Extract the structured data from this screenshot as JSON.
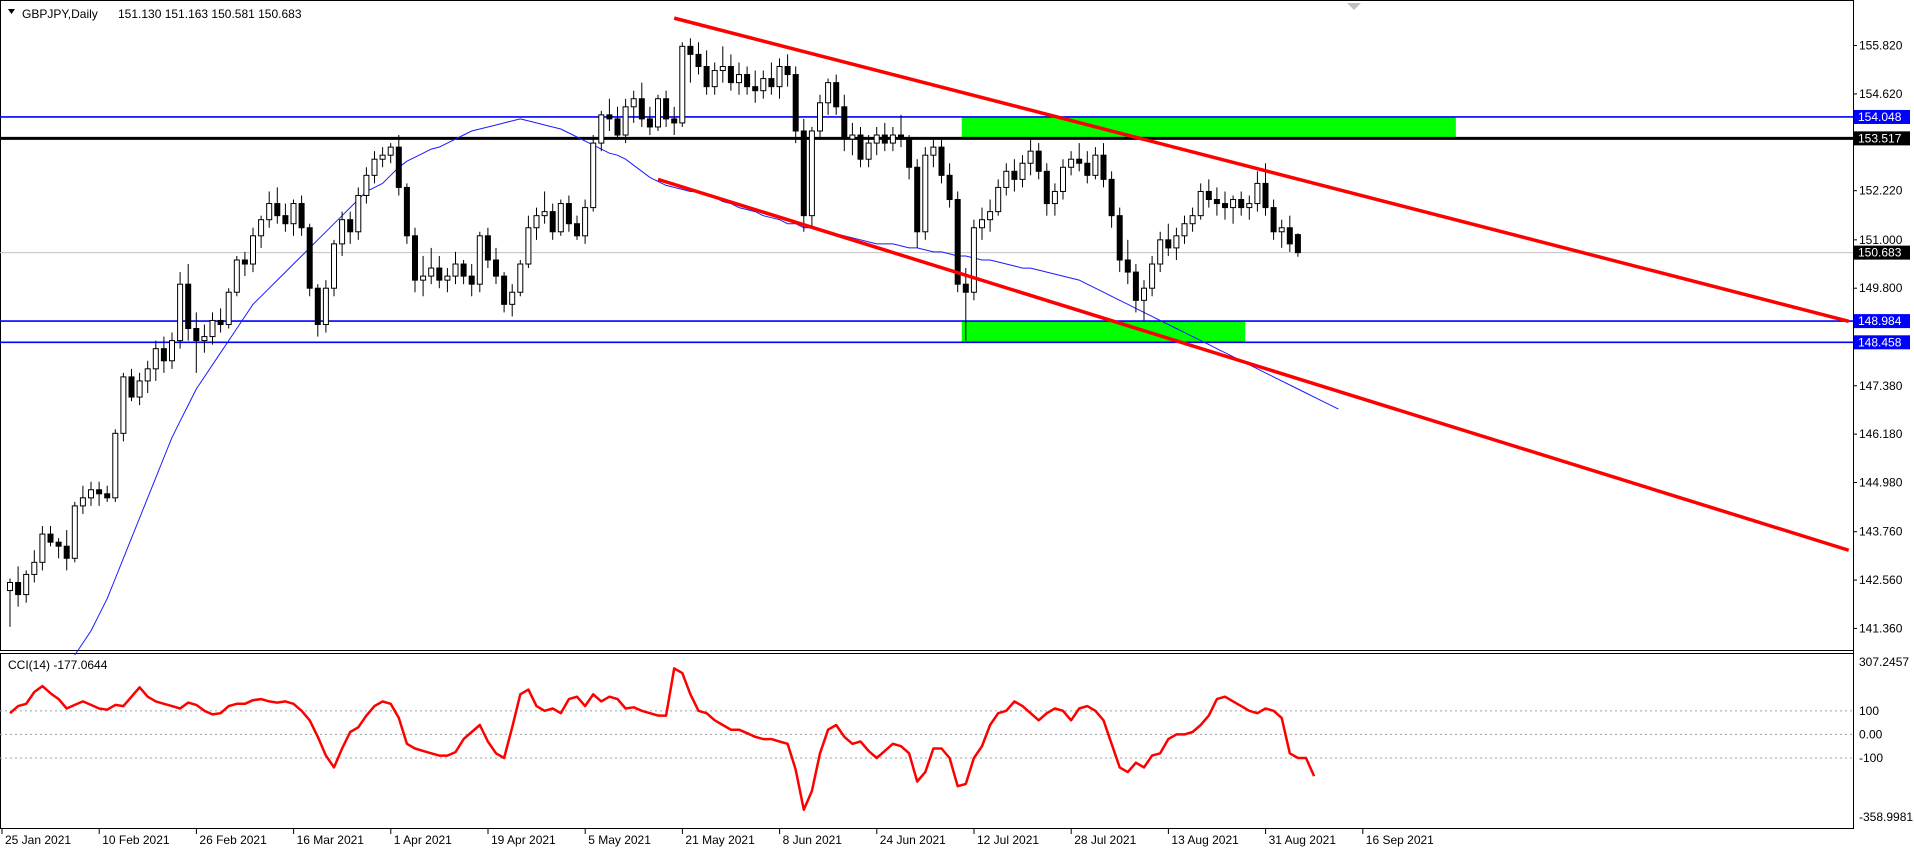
{
  "header": {
    "symbol": "GBPJPY,Daily",
    "ohlc": "151.130 151.163 150.581 150.683"
  },
  "cci": {
    "label": "CCI(14) -177.0644",
    "axis_labels": [
      "307.2457",
      "100",
      "0.00",
      "-100",
      "-358.9981"
    ],
    "levels": [
      307.2457,
      100,
      0,
      -100,
      -358.9981
    ]
  },
  "colors": {
    "candle": "#000000",
    "ma": "#1a1aff",
    "trend": "#ff0000",
    "hline_blue": "#0000ff",
    "hline_black": "#000000",
    "zone": "#00ff00",
    "cci": "#ff0000",
    "tag_blue": "#0000ff",
    "tag_black": "#000000"
  },
  "chart_data": {
    "type": "candlestick",
    "title": "",
    "price_axis_labels": [
      "155.820",
      "154.620",
      "152.220",
      "151.000",
      "149.800",
      "147.380",
      "146.180",
      "144.980",
      "143.760",
      "142.560",
      "141.360"
    ],
    "price_range": [
      140.85,
      156.9
    ],
    "x_axis_labels": [
      "25 Jan 2021",
      "10 Feb 2021",
      "26 Feb 2021",
      "16 Mar 2021",
      "1 Apr 2021",
      "19 Apr 2021",
      "5 May 2021",
      "21 May 2021",
      "8 Jun 2021",
      "24 Jun 2021",
      "12 Jul 2021",
      "28 Jul 2021",
      "13 Aug 2021",
      "31 Aug 2021",
      "16 Sep 2021"
    ],
    "x_axis_bar_index": [
      0,
      12,
      24,
      36,
      48,
      60,
      72,
      84,
      96,
      108,
      120,
      132,
      144,
      156,
      168
    ],
    "current_price": 150.683,
    "current_price_label": "150.683",
    "horizontal_lines": [
      {
        "price": 154.048,
        "label": "154.048",
        "style": "blue"
      },
      {
        "price": 153.517,
        "label": "153.517",
        "style": "black"
      },
      {
        "price": 148.984,
        "label": "148.984",
        "style": "blue"
      },
      {
        "price": 148.458,
        "label": "148.458",
        "style": "blue"
      }
    ],
    "zones": [
      {
        "bar_from": 117.5,
        "bar_to": 178.5,
        "price_top": 154.05,
        "price_bottom": 153.52
      },
      {
        "bar_from": 117.5,
        "bar_to": 152.5,
        "price_top": 148.99,
        "price_bottom": 148.46
      }
    ],
    "trendlines": [
      {
        "bar1": 82,
        "price1": 156.5,
        "bar2": 227,
        "price2": 148.98
      },
      {
        "bar1": 80,
        "price1": 152.5,
        "bar2": 227,
        "price2": 143.3
      }
    ],
    "candles": [
      [
        142.3,
        142.6,
        141.4,
        142.5
      ],
      [
        142.5,
        142.9,
        141.9,
        142.2
      ],
      [
        142.2,
        142.8,
        142.0,
        142.7
      ],
      [
        142.7,
        143.3,
        142.5,
        143.0
      ],
      [
        143.0,
        143.9,
        142.8,
        143.7
      ],
      [
        143.7,
        143.9,
        143.4,
        143.5
      ],
      [
        143.5,
        143.6,
        143.1,
        143.4
      ],
      [
        143.4,
        143.8,
        142.8,
        143.1
      ],
      [
        143.1,
        144.5,
        143.0,
        144.4
      ],
      [
        144.4,
        144.9,
        144.2,
        144.6
      ],
      [
        144.6,
        145.0,
        144.4,
        144.8
      ],
      [
        144.8,
        145.0,
        144.4,
        144.7
      ],
      [
        144.7,
        144.9,
        144.5,
        144.6
      ],
      [
        144.6,
        146.3,
        144.5,
        146.2
      ],
      [
        146.2,
        147.7,
        146.0,
        147.6
      ],
      [
        147.6,
        147.8,
        147.0,
        147.1
      ],
      [
        147.1,
        147.7,
        146.9,
        147.5
      ],
      [
        147.5,
        148.0,
        147.2,
        147.8
      ],
      [
        147.8,
        148.5,
        147.5,
        148.3
      ],
      [
        148.3,
        148.6,
        147.7,
        148.0
      ],
      [
        148.0,
        148.7,
        147.8,
        148.5
      ],
      [
        148.5,
        150.2,
        148.3,
        149.9
      ],
      [
        149.9,
        150.4,
        148.5,
        148.8
      ],
      [
        148.8,
        149.2,
        147.7,
        148.5
      ],
      [
        148.5,
        148.9,
        148.2,
        148.6
      ],
      [
        148.6,
        149.2,
        148.4,
        149.0
      ],
      [
        149.0,
        149.3,
        148.7,
        148.9
      ],
      [
        148.9,
        149.8,
        148.8,
        149.7
      ],
      [
        149.7,
        150.6,
        149.6,
        150.5
      ],
      [
        150.5,
        150.7,
        150.1,
        150.4
      ],
      [
        150.4,
        151.3,
        150.2,
        151.1
      ],
      [
        151.1,
        151.6,
        150.8,
        151.5
      ],
      [
        151.5,
        152.2,
        151.3,
        151.9
      ],
      [
        151.9,
        152.3,
        151.4,
        151.6
      ],
      [
        151.6,
        151.9,
        151.2,
        151.4
      ],
      [
        151.4,
        152.0,
        151.1,
        151.9
      ],
      [
        151.9,
        152.1,
        151.1,
        151.3
      ],
      [
        151.3,
        151.4,
        149.6,
        149.8
      ],
      [
        149.8,
        149.9,
        148.6,
        148.9
      ],
      [
        148.9,
        150.0,
        148.7,
        149.8
      ],
      [
        149.8,
        151.0,
        149.6,
        150.9
      ],
      [
        150.9,
        151.7,
        150.6,
        151.5
      ],
      [
        151.5,
        151.7,
        150.9,
        151.2
      ],
      [
        151.2,
        152.3,
        151.0,
        152.1
      ],
      [
        152.1,
        152.8,
        151.9,
        152.6
      ],
      [
        152.6,
        153.2,
        152.4,
        153.0
      ],
      [
        153.0,
        153.3,
        152.8,
        153.1
      ],
      [
        153.1,
        153.4,
        152.9,
        153.3
      ],
      [
        153.3,
        153.6,
        152.1,
        152.3
      ],
      [
        152.3,
        152.4,
        150.9,
        151.1
      ],
      [
        151.1,
        151.3,
        149.7,
        150.0
      ],
      [
        150.0,
        150.6,
        149.6,
        150.1
      ],
      [
        150.1,
        150.8,
        149.9,
        150.3
      ],
      [
        150.3,
        150.6,
        149.8,
        150.0
      ],
      [
        150.0,
        150.3,
        149.7,
        150.1
      ],
      [
        150.1,
        150.7,
        149.9,
        150.4
      ],
      [
        150.4,
        150.5,
        149.9,
        150.1
      ],
      [
        150.1,
        150.4,
        149.6,
        149.9
      ],
      [
        149.9,
        151.2,
        149.7,
        151.1
      ],
      [
        151.1,
        151.3,
        150.3,
        150.5
      ],
      [
        150.5,
        150.8,
        149.9,
        150.1
      ],
      [
        150.1,
        150.2,
        149.2,
        149.4
      ],
      [
        149.4,
        149.9,
        149.1,
        149.7
      ],
      [
        149.7,
        150.5,
        149.6,
        150.4
      ],
      [
        150.4,
        151.6,
        150.3,
        151.3
      ],
      [
        151.3,
        151.8,
        151.0,
        151.6
      ],
      [
        151.6,
        152.2,
        151.4,
        151.7
      ],
      [
        151.7,
        151.9,
        151.0,
        151.2
      ],
      [
        151.2,
        152.0,
        151.1,
        151.9
      ],
      [
        151.9,
        152.1,
        151.2,
        151.4
      ],
      [
        151.4,
        151.6,
        151.0,
        151.1
      ],
      [
        151.1,
        152.0,
        150.9,
        151.8
      ],
      [
        151.8,
        153.6,
        151.7,
        153.4
      ],
      [
        153.4,
        154.2,
        153.2,
        154.1
      ],
      [
        154.1,
        154.5,
        153.7,
        154.0
      ],
      [
        154.0,
        154.3,
        153.5,
        153.6
      ],
      [
        153.6,
        154.5,
        153.4,
        154.3
      ],
      [
        154.3,
        154.7,
        153.9,
        154.5
      ],
      [
        154.5,
        154.9,
        153.8,
        154.0
      ],
      [
        154.0,
        154.3,
        153.6,
        153.8
      ],
      [
        153.8,
        154.6,
        153.7,
        154.5
      ],
      [
        154.5,
        154.7,
        153.8,
        154.0
      ],
      [
        154.0,
        154.3,
        153.6,
        153.9
      ],
      [
        153.9,
        155.9,
        153.8,
        155.8
      ],
      [
        155.8,
        156.0,
        154.9,
        155.6
      ],
      [
        155.6,
        155.9,
        155.1,
        155.3
      ],
      [
        155.3,
        155.7,
        154.6,
        154.8
      ],
      [
        154.8,
        155.4,
        154.6,
        155.2
      ],
      [
        155.2,
        155.8,
        154.9,
        155.3
      ],
      [
        155.3,
        155.6,
        154.7,
        154.9
      ],
      [
        154.9,
        155.4,
        154.6,
        155.1
      ],
      [
        155.1,
        155.3,
        154.6,
        154.8
      ],
      [
        154.8,
        155.2,
        154.4,
        154.7
      ],
      [
        154.7,
        155.2,
        154.5,
        155.0
      ],
      [
        155.0,
        155.4,
        154.6,
        154.8
      ],
      [
        154.8,
        155.5,
        154.5,
        155.3
      ],
      [
        155.3,
        155.6,
        154.8,
        155.1
      ],
      [
        155.1,
        155.3,
        153.4,
        153.7
      ],
      [
        153.7,
        154.0,
        151.2,
        151.6
      ],
      [
        151.6,
        153.8,
        151.3,
        153.7
      ],
      [
        153.7,
        154.6,
        153.5,
        154.4
      ],
      [
        154.4,
        155.0,
        154.1,
        154.9
      ],
      [
        154.9,
        155.1,
        154.1,
        154.3
      ],
      [
        154.3,
        154.6,
        153.2,
        153.5
      ],
      [
        153.5,
        153.9,
        153.1,
        153.6
      ],
      [
        153.6,
        153.8,
        152.8,
        153.0
      ],
      [
        153.0,
        153.6,
        152.8,
        153.4
      ],
      [
        153.4,
        153.8,
        153.1,
        153.6
      ],
      [
        153.6,
        153.9,
        153.2,
        153.4
      ],
      [
        153.4,
        153.8,
        153.2,
        153.6
      ],
      [
        153.6,
        154.1,
        153.3,
        153.5
      ],
      [
        153.5,
        153.6,
        152.5,
        152.8
      ],
      [
        152.8,
        153.0,
        150.8,
        151.2
      ],
      [
        151.2,
        153.3,
        151.0,
        153.1
      ],
      [
        153.1,
        153.5,
        152.8,
        153.3
      ],
      [
        153.3,
        153.5,
        152.4,
        152.6
      ],
      [
        152.6,
        152.9,
        151.8,
        152.0
      ],
      [
        152.0,
        152.2,
        149.7,
        149.9
      ],
      [
        149.9,
        150.3,
        148.5,
        149.7
      ],
      [
        149.7,
        151.5,
        149.5,
        151.3
      ],
      [
        151.3,
        151.8,
        151.0,
        151.5
      ],
      [
        151.5,
        152.0,
        151.2,
        151.7
      ],
      [
        151.7,
        152.5,
        151.6,
        152.3
      ],
      [
        152.3,
        152.9,
        152.1,
        152.7
      ],
      [
        152.7,
        153.0,
        152.2,
        152.5
      ],
      [
        152.5,
        153.1,
        152.3,
        152.9
      ],
      [
        152.9,
        153.5,
        152.6,
        153.2
      ],
      [
        153.2,
        153.4,
        152.5,
        152.7
      ],
      [
        152.7,
        152.9,
        151.6,
        151.9
      ],
      [
        151.9,
        152.4,
        151.6,
        152.2
      ],
      [
        152.2,
        153.0,
        152.0,
        152.8
      ],
      [
        152.8,
        153.2,
        152.6,
        153.0
      ],
      [
        153.0,
        153.4,
        152.7,
        152.9
      ],
      [
        152.9,
        153.2,
        152.4,
        152.6
      ],
      [
        152.6,
        153.3,
        152.5,
        153.1
      ],
      [
        153.1,
        153.4,
        152.3,
        152.5
      ],
      [
        152.5,
        152.7,
        151.3,
        151.6
      ],
      [
        151.6,
        151.8,
        150.2,
        150.5
      ],
      [
        150.5,
        151.0,
        149.9,
        150.2
      ],
      [
        150.2,
        150.4,
        149.2,
        149.5
      ],
      [
        149.5,
        150.0,
        149.0,
        149.8
      ],
      [
        149.8,
        150.6,
        149.6,
        150.4
      ],
      [
        150.4,
        151.2,
        150.2,
        151.0
      ],
      [
        151.0,
        151.4,
        150.6,
        150.8
      ],
      [
        150.8,
        151.3,
        150.5,
        151.1
      ],
      [
        151.1,
        151.6,
        150.9,
        151.4
      ],
      [
        151.4,
        151.8,
        151.2,
        151.6
      ],
      [
        151.6,
        152.4,
        151.5,
        152.2
      ],
      [
        152.2,
        152.5,
        151.8,
        152.0
      ],
      [
        152.0,
        152.3,
        151.6,
        151.9
      ],
      [
        151.9,
        152.2,
        151.5,
        151.8
      ],
      [
        151.8,
        152.1,
        151.4,
        152.0
      ],
      [
        152.0,
        152.2,
        151.6,
        151.8
      ],
      [
        151.8,
        152.1,
        151.5,
        151.9
      ],
      [
        151.9,
        152.7,
        151.7,
        152.4
      ],
      [
        152.4,
        152.9,
        151.6,
        151.8
      ],
      [
        151.8,
        152.0,
        151.0,
        151.2
      ],
      [
        151.2,
        151.5,
        150.8,
        151.3
      ],
      [
        151.3,
        151.6,
        150.7,
        150.9
      ],
      [
        151.13,
        151.163,
        150.581,
        150.683
      ]
    ],
    "ma": {
      "name": "",
      "start_bar": 8,
      "values": [
        140.7,
        141.0,
        141.3,
        141.7,
        142.1,
        142.6,
        143.1,
        143.6,
        144.1,
        144.6,
        145.1,
        145.6,
        146.1,
        146.5,
        146.9,
        147.3,
        147.6,
        147.9,
        148.2,
        148.5,
        148.8,
        149.1,
        149.4,
        149.6,
        149.8,
        150.0,
        150.2,
        150.4,
        150.6,
        150.8,
        151.0,
        151.2,
        151.4,
        151.6,
        151.8,
        152.0,
        152.2,
        152.3,
        152.4,
        152.6,
        152.8,
        152.95,
        153.05,
        153.15,
        153.25,
        153.3,
        153.4,
        153.5,
        153.6,
        153.7,
        153.75,
        153.8,
        153.85,
        153.9,
        153.95,
        154.0,
        153.95,
        153.9,
        153.85,
        153.8,
        153.75,
        153.65,
        153.55,
        153.45,
        153.35,
        153.25,
        153.15,
        153.1,
        153.0,
        152.85,
        152.7,
        152.55,
        152.45,
        152.35,
        152.3,
        152.25,
        152.2,
        152.2,
        152.1,
        152.05,
        151.95,
        151.9,
        151.8,
        151.75,
        151.7,
        151.6,
        151.55,
        151.5,
        151.4,
        151.4,
        151.3,
        151.3,
        151.25,
        151.2,
        151.15,
        151.1,
        151.05,
        151.0,
        150.95,
        150.9,
        150.9,
        150.9,
        150.85,
        150.8,
        150.8,
        150.75,
        150.7,
        150.7,
        150.65,
        150.6,
        150.6,
        150.55,
        150.5,
        150.5,
        150.45,
        150.4,
        150.35,
        150.3,
        150.3,
        150.25,
        150.2,
        150.15,
        150.1,
        150.05,
        150.0,
        149.9,
        149.8,
        149.7,
        149.6,
        149.5,
        149.4,
        149.3,
        149.2,
        149.1,
        149.0,
        148.9,
        148.8,
        148.7,
        148.6,
        148.5,
        148.4,
        148.3,
        148.2,
        148.1,
        148.0,
        147.9,
        147.8,
        147.7,
        147.6,
        147.5,
        147.4,
        147.3,
        147.2,
        147.1,
        147.0,
        146.9,
        146.8
      ]
    },
    "cci_values": [
      90,
      120,
      130,
      180,
      205,
      175,
      150,
      110,
      125,
      140,
      125,
      110,
      105,
      125,
      120,
      160,
      200,
      160,
      140,
      130,
      120,
      110,
      135,
      125,
      100,
      85,
      90,
      120,
      130,
      130,
      145,
      150,
      140,
      135,
      140,
      130,
      100,
      60,
      -10,
      -90,
      -140,
      -60,
      10,
      30,
      80,
      120,
      140,
      130,
      70,
      -40,
      -60,
      -70,
      -80,
      -90,
      -90,
      -75,
      -20,
      10,
      40,
      -30,
      -80,
      -100,
      30,
      170,
      190,
      120,
      100,
      110,
      90,
      150,
      160,
      120,
      170,
      140,
      160,
      150,
      110,
      115,
      100,
      90,
      80,
      80,
      280,
      260,
      170,
      100,
      90,
      60,
      40,
      20,
      20,
      5,
      -10,
      -20,
      -20,
      -30,
      -40,
      -150,
      -320,
      -240,
      -80,
      20,
      40,
      -10,
      -40,
      -30,
      -70,
      -100,
      -70,
      -40,
      -50,
      -80,
      -200,
      -160,
      -60,
      -60,
      -100,
      -220,
      -210,
      -100,
      -50,
      40,
      90,
      100,
      140,
      120,
      90,
      60,
      90,
      110,
      100,
      60,
      110,
      120,
      100,
      60,
      -40,
      -140,
      -160,
      -120,
      -140,
      -90,
      -80,
      -20,
      0,
      0,
      10,
      40,
      80,
      150,
      160,
      140,
      120,
      100,
      90,
      110,
      100,
      70,
      -80,
      -100,
      -100,
      -177
    ]
  }
}
